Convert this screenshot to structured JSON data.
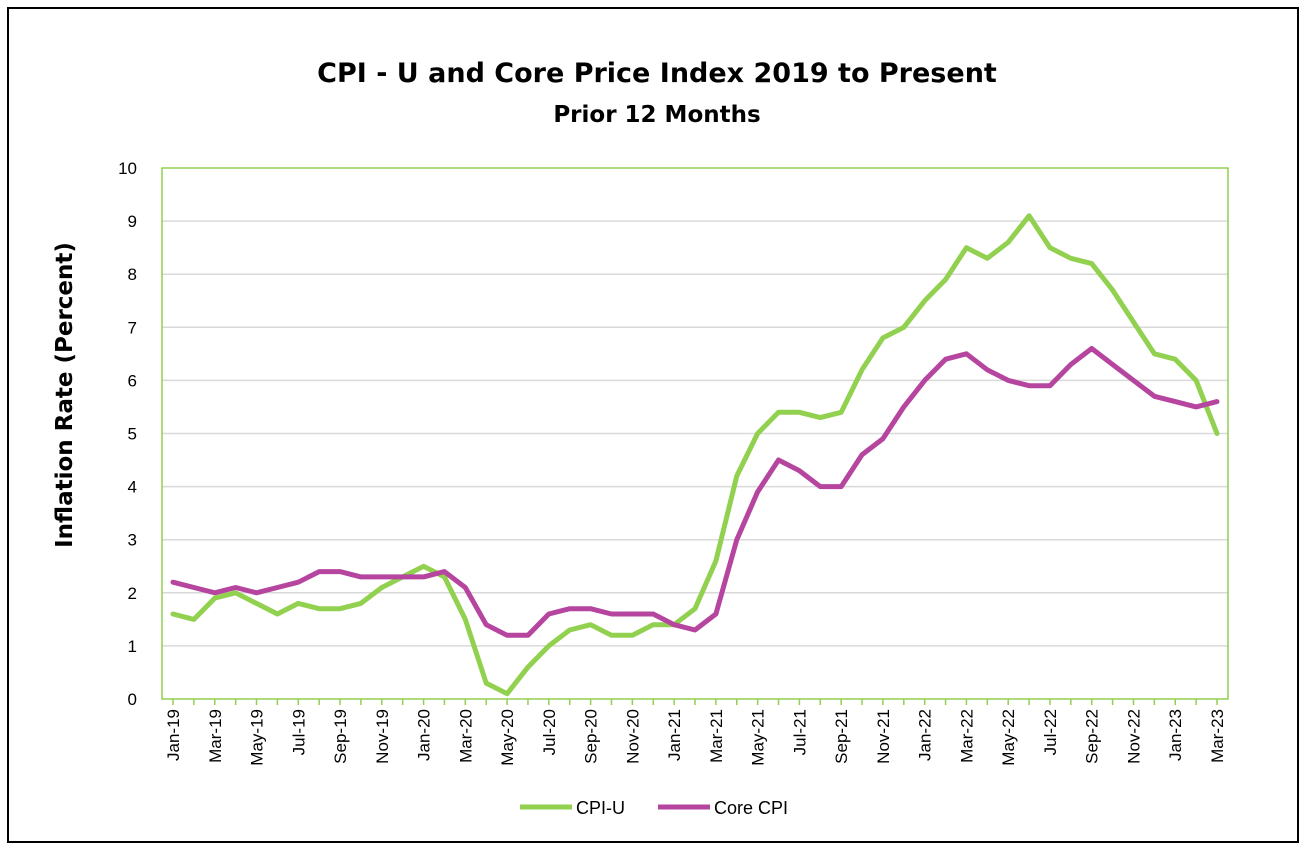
{
  "chart_data": {
    "type": "line",
    "title": "CPI - U and Core Price Index 2019 to Present",
    "subtitle": "Prior 12 Months",
    "xlabel": "",
    "ylabel": "Inflation Rate (Percent)",
    "ylim": [
      0,
      10
    ],
    "yticks": [
      0,
      1,
      2,
      3,
      4,
      5,
      6,
      7,
      8,
      9,
      10
    ],
    "grid": true,
    "legend_position": "bottom",
    "categories": [
      "Jan-19",
      "Feb-19",
      "Mar-19",
      "Apr-19",
      "May-19",
      "Jun-19",
      "Jul-19",
      "Aug-19",
      "Sep-19",
      "Oct-19",
      "Nov-19",
      "Dec-19",
      "Jan-20",
      "Feb-20",
      "Mar-20",
      "Apr-20",
      "May-20",
      "Jun-20",
      "Jul-20",
      "Aug-20",
      "Sep-20",
      "Oct-20",
      "Nov-20",
      "Dec-20",
      "Jan-21",
      "Feb-21",
      "Mar-21",
      "Apr-21",
      "May-21",
      "Jun-21",
      "Jul-21",
      "Aug-21",
      "Sep-21",
      "Oct-21",
      "Nov-21",
      "Dec-21",
      "Jan-22",
      "Feb-22",
      "Mar-22",
      "Apr-22",
      "May-22",
      "Jun-22",
      "Jul-22",
      "Aug-22",
      "Sep-22",
      "Oct-22",
      "Nov-22",
      "Dec-22",
      "Jan-23",
      "Feb-23",
      "Mar-23"
    ],
    "tick_labels": [
      "Jan-19",
      "Mar-19",
      "May-19",
      "Jul-19",
      "Sep-19",
      "Nov-19",
      "Jan-20",
      "Mar-20",
      "May-20",
      "Jul-20",
      "Sep-20",
      "Nov-20",
      "Jan-21",
      "Mar-21",
      "May-21",
      "Jul-21",
      "Sep-21",
      "Nov-21",
      "Jan-22",
      "Mar-22",
      "May-22",
      "Jul-22",
      "Sep-22",
      "Nov-22",
      "Jan-23",
      "Mar-23"
    ],
    "series": [
      {
        "name": "CPI-U",
        "color": "#92D050",
        "values": [
          1.6,
          1.5,
          1.9,
          2.0,
          1.8,
          1.6,
          1.8,
          1.7,
          1.7,
          1.8,
          2.1,
          2.3,
          2.5,
          2.3,
          1.5,
          0.3,
          0.1,
          0.6,
          1.0,
          1.3,
          1.4,
          1.2,
          1.2,
          1.4,
          1.4,
          1.7,
          2.6,
          4.2,
          5.0,
          5.4,
          5.4,
          5.3,
          5.4,
          6.2,
          6.8,
          7.0,
          7.5,
          7.9,
          8.5,
          8.3,
          8.6,
          9.1,
          8.5,
          8.3,
          8.2,
          7.7,
          7.1,
          6.5,
          6.4,
          6.0,
          5.0
        ]
      },
      {
        "name": "Core CPI",
        "color": "#B5459E",
        "values": [
          2.2,
          2.1,
          2.0,
          2.1,
          2.0,
          2.1,
          2.2,
          2.4,
          2.4,
          2.3,
          2.3,
          2.3,
          2.3,
          2.4,
          2.1,
          1.4,
          1.2,
          1.2,
          1.6,
          1.7,
          1.7,
          1.6,
          1.6,
          1.6,
          1.4,
          1.3,
          1.6,
          3.0,
          3.9,
          4.5,
          4.3,
          4.0,
          4.0,
          4.6,
          4.9,
          5.5,
          6.0,
          6.4,
          6.5,
          6.2,
          6.0,
          5.9,
          5.9,
          6.3,
          6.6,
          6.3,
          6.0,
          5.7,
          5.6,
          5.5,
          5.6
        ]
      }
    ],
    "colors": {
      "plot_border": "#92D050",
      "gridline": "#D9D9D9"
    }
  }
}
